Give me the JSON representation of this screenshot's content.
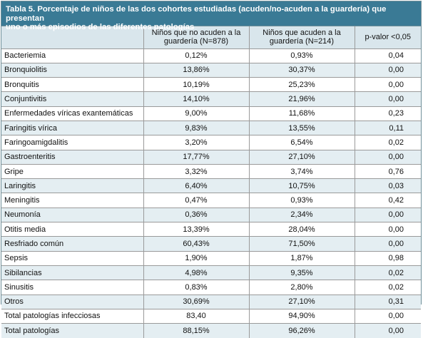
{
  "caption": {
    "line1": "Tabla 5. Porcentaje de niños de las dos cohortes estudiadas (acuden/no-acuden a la guardería) que presentan",
    "line2": "uno o más episodios de las diferentes patologías"
  },
  "columns": {
    "c1_line1": "Niños que no acuden a la",
    "c1_line2": "guardería (N=878)",
    "c2_line1": "Niños que acuden a la",
    "c2_line2": "guardería (N=214)",
    "c3": "p-valor <0,05"
  },
  "rows": [
    {
      "label": "Bacteriemia",
      "no": "0,12%",
      "si": "0,93%",
      "p": "0,04"
    },
    {
      "label": "Bronquiolitis",
      "no": "13,86%",
      "si": "30,37%",
      "p": "0,00"
    },
    {
      "label": "Bronquitis",
      "no": "10,19%",
      "si": "25,23%",
      "p": "0,00"
    },
    {
      "label": "Conjuntivitis",
      "no": "14,10%",
      "si": "21,96%",
      "p": "0,00"
    },
    {
      "label": "Enfermedades víricas exantemáticas",
      "no": "9,00%",
      "si": "11,68%",
      "p": "0,23"
    },
    {
      "label": "Faringitis vírica",
      "no": "9,83%",
      "si": "13,55%",
      "p": "0,11"
    },
    {
      "label": "Faringoamigdalitis",
      "no": "3,20%",
      "si": "6,54%",
      "p": "0,02"
    },
    {
      "label": "Gastroenteritis",
      "no": "17,77%",
      "si": "27,10%",
      "p": "0,00"
    },
    {
      "label": "Gripe",
      "no": "3,32%",
      "si": "3,74%",
      "p": "0,76"
    },
    {
      "label": "Laringitis",
      "no": "6,40%",
      "si": "10,75%",
      "p": "0,03"
    },
    {
      "label": "Meningitis",
      "no": "0,47%",
      "si": "0,93%",
      "p": "0,42"
    },
    {
      "label": "Neumonía",
      "no": "0,36%",
      "si": "2,34%",
      "p": "0,00"
    },
    {
      "label": "Otitis media",
      "no": "13,39%",
      "si": "28,04%",
      "p": "0,00"
    },
    {
      "label": "Resfriado común",
      "no": "60,43%",
      "si": "71,50%",
      "p": "0,00"
    },
    {
      "label": "Sepsis",
      "no": "1,90%",
      "si": "1,87%",
      "p": "0,98"
    },
    {
      "label": "Sibilancias",
      "no": "4,98%",
      "si": "9,35%",
      "p": "0,02"
    },
    {
      "label": "Sinusitis",
      "no": "0,83%",
      "si": "2,80%",
      "p": "0,02"
    },
    {
      "label": "Otros",
      "no": "30,69%",
      "si": "27,10%",
      "p": "0,31"
    },
    {
      "label": "Total patologías infecciosas",
      "no": "83,40",
      "si": "94,90%",
      "p": "0,00"
    },
    {
      "label": "Total patologías",
      "no": "88,15%",
      "si": "96,26%",
      "p": "0,00"
    }
  ],
  "colors": {
    "caption_bg": "#3a7a95",
    "header_bg": "#d9e6ec",
    "shaded_row_bg": "#e4eef2"
  }
}
